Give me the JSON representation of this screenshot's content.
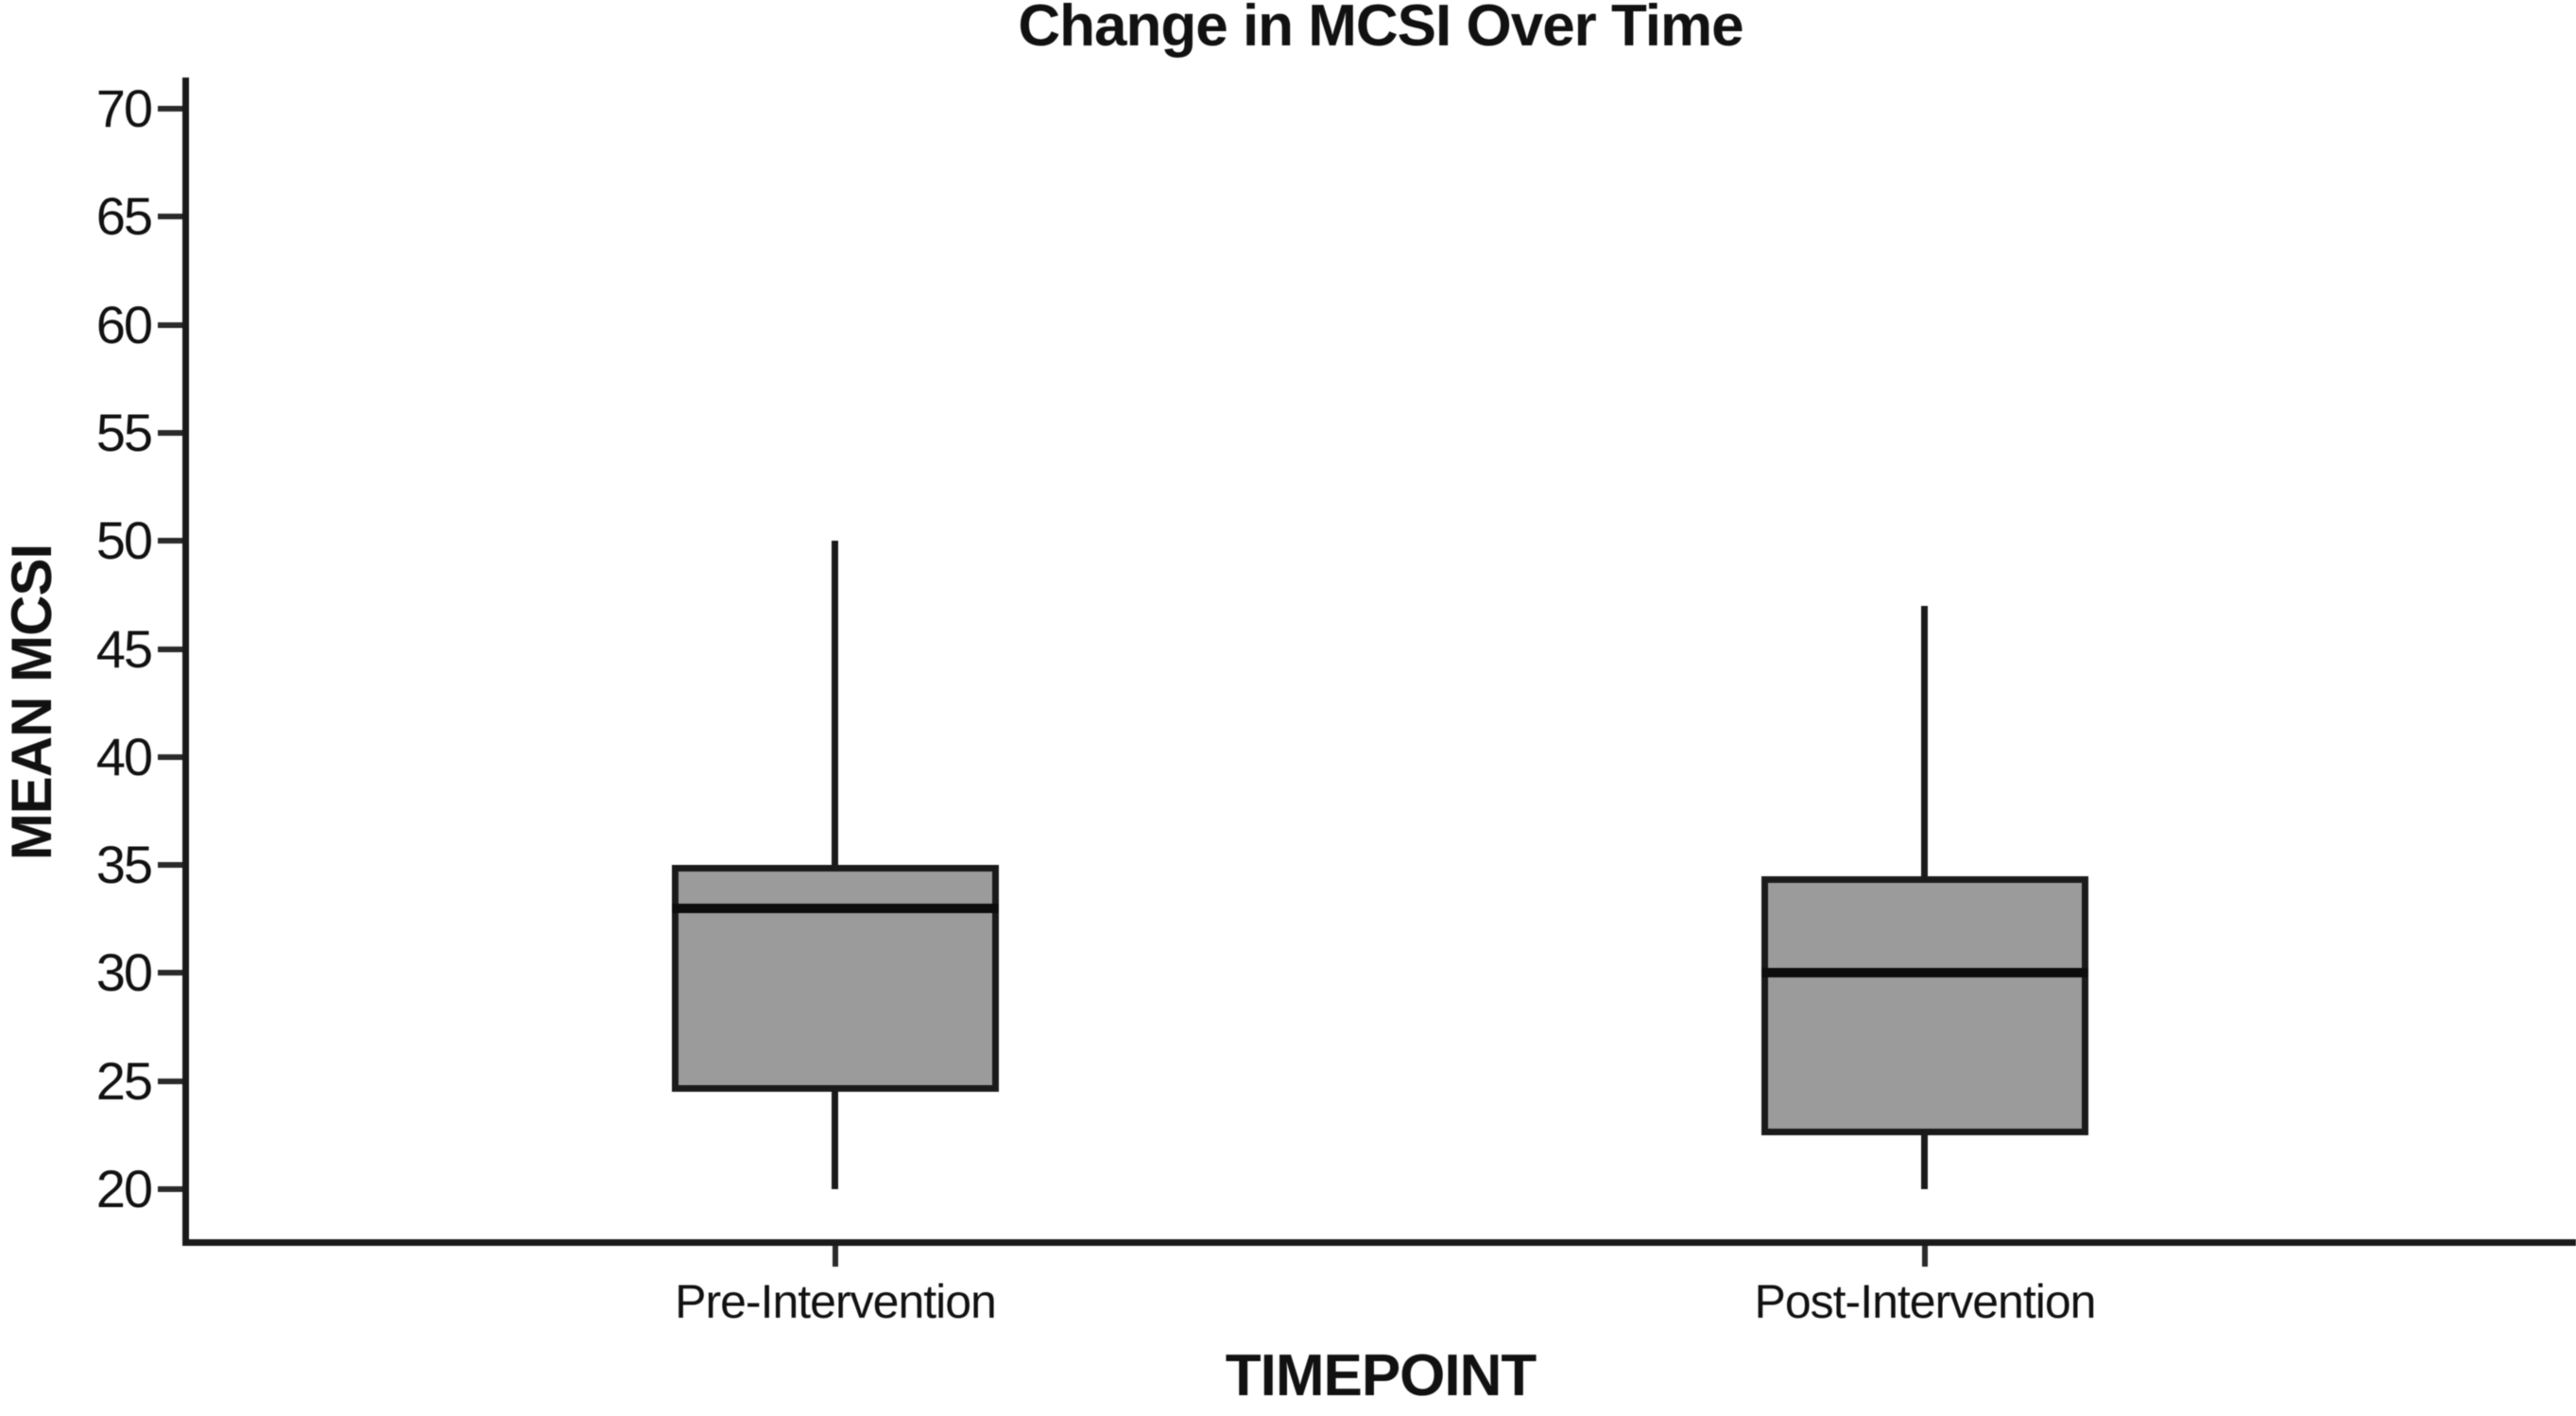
{
  "chart_data": {
    "type": "boxplot",
    "title": "Change in MCSI Over Time",
    "xlabel": "TIMEPOINT",
    "ylabel": "MEAN MCSI",
    "ylim": [
      20,
      70
    ],
    "yticks": [
      70,
      65,
      60,
      55,
      50,
      45,
      40,
      35,
      30,
      25,
      20
    ],
    "ytick_step": 5,
    "categories": [
      "Pre-Intervention",
      "Post-Intervention"
    ],
    "series": [
      {
        "name": "Pre-Intervention",
        "whisker_low": 20,
        "q1": 24.5,
        "median": 33,
        "q3": 35,
        "whisker_high": 50
      },
      {
        "name": "Post-Intervention",
        "whisker_low": 20,
        "q1": 22.5,
        "median": 30,
        "q3": 34.5,
        "whisker_high": 47
      }
    ],
    "grid": false,
    "legend": null,
    "colors": {
      "box_fill": "#9b9b9b",
      "line": "#1a1a1a",
      "background": "#ffffff"
    }
  }
}
